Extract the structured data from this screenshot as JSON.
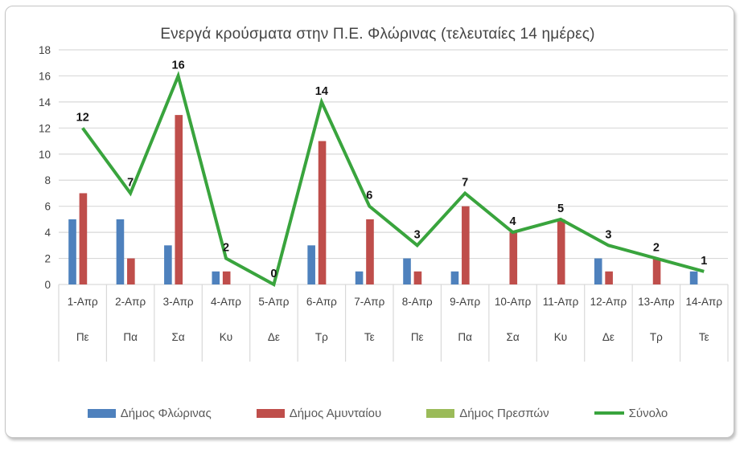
{
  "title": "Ενεργά κρούσματα στην Π.Ε. Φλώρινας (τελευταίες 14 ημέρες)",
  "colors": {
    "bar_blue": "#4E81BD",
    "bar_red": "#BF4E4B",
    "bar_olive": "#9BBB59",
    "line_green": "#39A43D",
    "gridline": "#D9D9D9",
    "axis_text": "#404040",
    "legend_text": "#595959",
    "value_label": "#151515",
    "card_border": "#C4C4C4"
  },
  "chart_data": {
    "type": "bar",
    "subtype": "combo-clustered-bars-with-line",
    "title": "Ενεργά κρούσματα στην Π.Ε. Φλώρινας (τελευταίες 14 ημέρες)",
    "categories": [
      "1-Απρ",
      "2-Απρ",
      "3-Απρ",
      "4-Απρ",
      "5-Απρ",
      "6-Απρ",
      "7-Απρ",
      "8-Απρ",
      "9-Απρ",
      "10-Απρ",
      "11-Απρ",
      "12-Απρ",
      "13-Απρ",
      "14-Απρ"
    ],
    "weekday_labels": [
      "Πε",
      "Πα",
      "Σα",
      "Κυ",
      "Δε",
      "Τρ",
      "Τε",
      "Πε",
      "Πα",
      "Σα",
      "Κυ",
      "Δε",
      "Τρ",
      "Τε"
    ],
    "series": [
      {
        "name": "Δήμος Φλώρινας",
        "type": "bar",
        "color": "#4E81BD",
        "values": [
          5,
          5,
          3,
          1,
          0,
          3,
          1,
          2,
          1,
          0,
          0,
          2,
          0,
          1
        ]
      },
      {
        "name": "Δήμος Αμυνταίου",
        "type": "bar",
        "color": "#BF4E4B",
        "values": [
          7,
          2,
          13,
          1,
          0,
          11,
          5,
          1,
          6,
          4,
          5,
          1,
          2,
          0
        ]
      },
      {
        "name": "Δήμος Πρεσπών",
        "type": "bar",
        "color": "#9BBB59",
        "values": [
          0,
          0,
          0,
          0,
          0,
          0,
          0,
          0,
          0,
          0,
          0,
          0,
          0,
          0
        ]
      },
      {
        "name": "Σύνολο",
        "type": "line",
        "color": "#39A43D",
        "values": [
          12,
          7,
          16,
          2,
          0,
          14,
          6,
          3,
          7,
          4,
          5,
          3,
          2,
          1
        ],
        "data_labels": true
      }
    ],
    "xlabel": "",
    "ylabel": "",
    "ylim": [
      0,
      18
    ],
    "ytick_step": 2,
    "grid": true,
    "legend_position": "bottom"
  }
}
